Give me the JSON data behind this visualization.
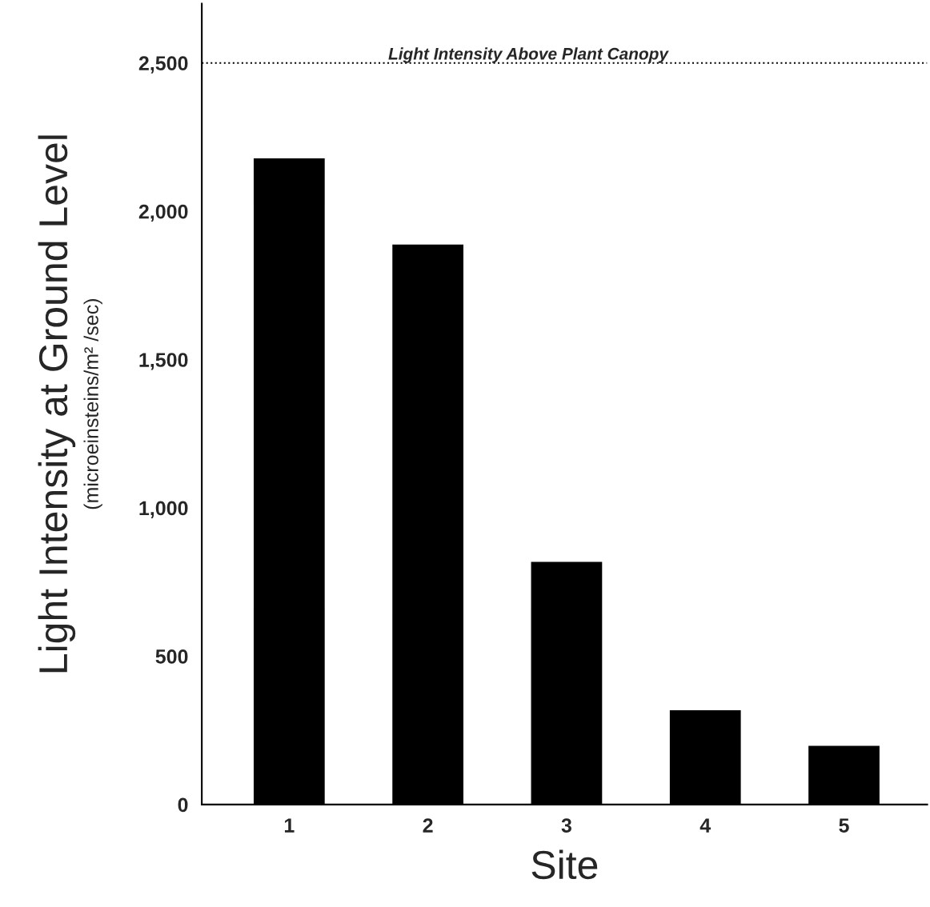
{
  "chart_data": {
    "type": "bar",
    "xlabel": "Site",
    "ylabel": "Light Intensity at Ground Level\n(microeinsteins/m² /sec)",
    "categories": [
      "1",
      "2",
      "3",
      "4",
      "5"
    ],
    "values": [
      2180,
      1890,
      820,
      320,
      200
    ],
    "color": "#000000",
    "ylim": [
      0,
      2700
    ],
    "yticks": [
      0,
      {
        "value": 500,
        "label": "500"
      },
      {
        "value": 1000,
        "label": "1,000"
      },
      {
        "value": 1500,
        "label": "1,500"
      },
      {
        "value": 2000,
        "label": "2,000"
      },
      {
        "value": 2500,
        "label": "2,500"
      }
    ],
    "ref_lines": [
      {
        "axis": "y",
        "value": 2500,
        "label": "Light Intensity Above Plant Canopy",
        "color": "#000000",
        "line_style": "dotted"
      }
    ],
    "grid": false,
    "legend": false
  }
}
